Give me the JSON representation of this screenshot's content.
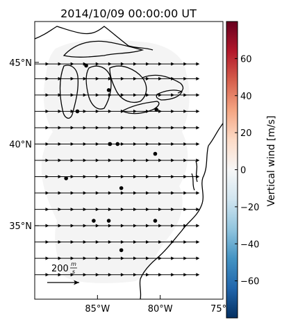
{
  "title": "2014/10/09 00:00:00 UT",
  "map": {
    "lon_range": [
      -90,
      -75
    ],
    "lat_range": [
      30.5,
      47.5
    ],
    "lat_ticks": [
      {
        "value": 45,
        "label": "45°N"
      },
      {
        "value": 40,
        "label": "40°N"
      },
      {
        "value": 35,
        "label": "35°N"
      }
    ],
    "lon_ticks": [
      {
        "value": -85,
        "label": "85°W"
      },
      {
        "value": -80,
        "label": "80°W"
      },
      {
        "value": -75,
        "label": "75°W"
      }
    ],
    "coverage_color": "#f4f4f4",
    "wind_arrows": {
      "lats": [
        44.9,
        44,
        43,
        42,
        41,
        40,
        39,
        38,
        37,
        36,
        35,
        34,
        33,
        32
      ],
      "lons": [
        -89.5,
        -88.5,
        -87.5,
        -86.5,
        -85.5,
        -84.5,
        -83.5,
        -82.5,
        -81.5,
        -80.5,
        -79.5,
        -78.5,
        -77.5
      ],
      "speed_m_s": 100
    },
    "stations": [
      {
        "lon": -85.9,
        "lat": 44.8
      },
      {
        "lon": -84.1,
        "lat": 43.3
      },
      {
        "lon": -86.6,
        "lat": 42.0
      },
      {
        "lon": -80.3,
        "lat": 42.1
      },
      {
        "lon": -84.0,
        "lat": 40.0
      },
      {
        "lon": -83.4,
        "lat": 40.0
      },
      {
        "lon": -80.4,
        "lat": 39.4
      },
      {
        "lon": -87.5,
        "lat": 37.9
      },
      {
        "lon": -83.1,
        "lat": 37.3
      },
      {
        "lon": -85.3,
        "lat": 35.3
      },
      {
        "lon": -84.1,
        "lat": 35.3
      },
      {
        "lon": -80.4,
        "lat": 35.3
      },
      {
        "lon": -83.1,
        "lat": 33.5
      }
    ],
    "scale_arrow": {
      "label": "200",
      "numerator": "m",
      "denominator": "s"
    }
  },
  "colorbar": {
    "label": "Vertical wind [m/s]",
    "range": [
      -80,
      80
    ],
    "ticks": [
      {
        "value": 60,
        "label": "60"
      },
      {
        "value": 40,
        "label": "40"
      },
      {
        "value": 20,
        "label": "20"
      },
      {
        "value": 0,
        "label": "0"
      },
      {
        "value": -20,
        "label": "−20"
      },
      {
        "value": -40,
        "label": "−40"
      },
      {
        "value": -60,
        "label": "−60"
      }
    ],
    "colormap": [
      "#67001f",
      "#b2182b",
      "#d6604d",
      "#f4a582",
      "#fddbc7",
      "#f7f7f7",
      "#d1e5f0",
      "#92c5de",
      "#4393c3",
      "#2166ac",
      "#053061"
    ]
  }
}
